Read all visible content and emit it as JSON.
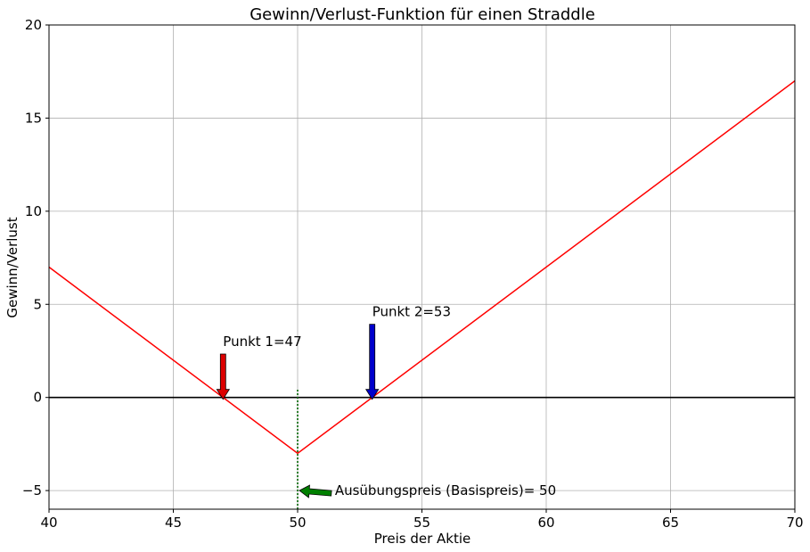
{
  "chart_data": {
    "type": "line",
    "title": "Gewinn/Verlust-Funktion für einen Straddle",
    "xlabel": "Preis der Aktie",
    "ylabel": "Gewinn/Verlust",
    "xlim": [
      40,
      70
    ],
    "ylim": [
      -6,
      20
    ],
    "xticks": [
      40,
      45,
      50,
      55,
      60,
      65,
      70
    ],
    "xtick_labels": [
      "40",
      "45",
      "50",
      "55",
      "60",
      "65",
      "70"
    ],
    "yticks": [
      -5,
      0,
      5,
      10,
      15,
      20
    ],
    "ytick_labels": [
      "−5",
      "0",
      "5",
      "10",
      "15",
      "20"
    ],
    "grid": true,
    "series": [
      {
        "color": "#ff0000",
        "x": [
          40,
          50,
          70
        ],
        "y": [
          7,
          -3,
          17
        ]
      }
    ],
    "reference_lines": [
      {
        "orientation": "horizontal",
        "value": 0,
        "color": "#000000",
        "style": "solid"
      },
      {
        "orientation": "vertical",
        "value": 50,
        "y_range": [
          -6,
          0.5
        ],
        "color": "#006400",
        "style": "dotted"
      }
    ],
    "annotations": [
      {
        "text": "Punkt 1=47",
        "point": [
          47,
          0
        ],
        "text_at": [
          47,
          3
        ],
        "arrow_color": "#dd0000"
      },
      {
        "text": "Punkt 2=53",
        "point": [
          53,
          0
        ],
        "text_at": [
          53,
          4.6
        ],
        "arrow_color": "#0000cc"
      },
      {
        "text": "Ausübungspreis (Basispreis)= 50",
        "point": [
          50,
          -5
        ],
        "text_at": [
          51.5,
          -5
        ],
        "arrow_color": "#008000"
      }
    ]
  }
}
